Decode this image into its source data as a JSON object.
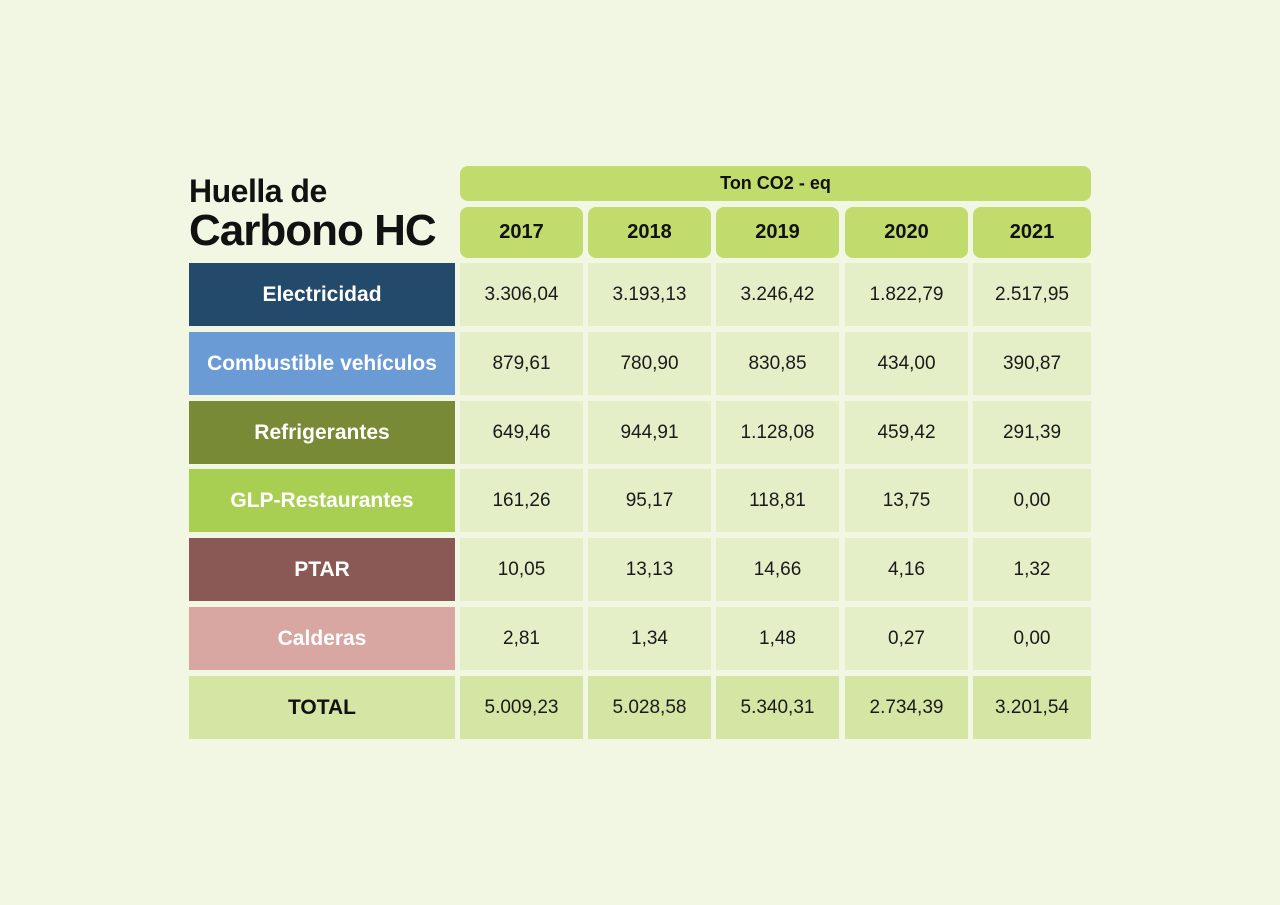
{
  "title": {
    "line1": "Huella de",
    "line2": "Carbono HC"
  },
  "unit": "Ton CO2 - eq",
  "years": [
    "2017",
    "2018",
    "2019",
    "2020",
    "2021"
  ],
  "rows": [
    {
      "label": "Electricidad",
      "color": "#244a6b",
      "values": [
        "3.306,04",
        "3.193,13",
        "3.246,42",
        "1.822,79",
        "2.517,95"
      ]
    },
    {
      "label": "Combustible vehículos",
      "color": "#6a9bd4",
      "values": [
        "879,61",
        "780,90",
        "830,85",
        "434,00",
        "390,87"
      ]
    },
    {
      "label": "Refrigerantes",
      "color": "#788a35",
      "values": [
        "649,46",
        "944,91",
        "1.128,08",
        "459,42",
        "291,39"
      ]
    },
    {
      "label": "GLP-Restaurantes",
      "color": "#a8cf52",
      "values": [
        "161,26",
        "95,17",
        "118,81",
        "13,75",
        "0,00"
      ]
    },
    {
      "label": "PTAR",
      "color": "#8b5955",
      "values": [
        "10,05",
        "13,13",
        "14,66",
        "4,16",
        "1,32"
      ]
    },
    {
      "label": "Calderas",
      "color": "#d8a7a2",
      "values": [
        "2,81",
        "1,34",
        "1,48",
        "0,27",
        "0,00"
      ]
    }
  ],
  "total": {
    "label": "TOTAL",
    "color": "#d4e5a4",
    "values": [
      "5.009,23",
      "5.028,58",
      "5.340,31",
      "2.734,39",
      "3.201,54"
    ]
  },
  "chart_data": {
    "type": "table",
    "columns": [
      "2017",
      "2018",
      "2019",
      "2020",
      "2021"
    ],
    "rows": [
      {
        "name": "Electricidad",
        "values": [
          3306.04,
          3193.13,
          3246.42,
          1822.79,
          2517.95
        ]
      },
      {
        "name": "Combustible vehículos",
        "values": [
          879.61,
          780.9,
          830.85,
          434.0,
          390.87
        ]
      },
      {
        "name": "Refrigerantes",
        "values": [
          649.46,
          944.91,
          1128.08,
          459.42,
          291.39
        ]
      },
      {
        "name": "GLP-Restaurantes",
        "values": [
          161.26,
          95.17,
          118.81,
          13.75,
          0.0
        ]
      },
      {
        "name": "PTAR",
        "values": [
          10.05,
          13.13,
          14.66,
          4.16,
          1.32
        ]
      },
      {
        "name": "Calderas",
        "values": [
          2.81,
          1.34,
          1.48,
          0.27,
          0.0
        ]
      },
      {
        "name": "TOTAL",
        "values": [
          5009.23,
          5028.58,
          5340.31,
          2734.39,
          3201.54
        ]
      }
    ]
  }
}
